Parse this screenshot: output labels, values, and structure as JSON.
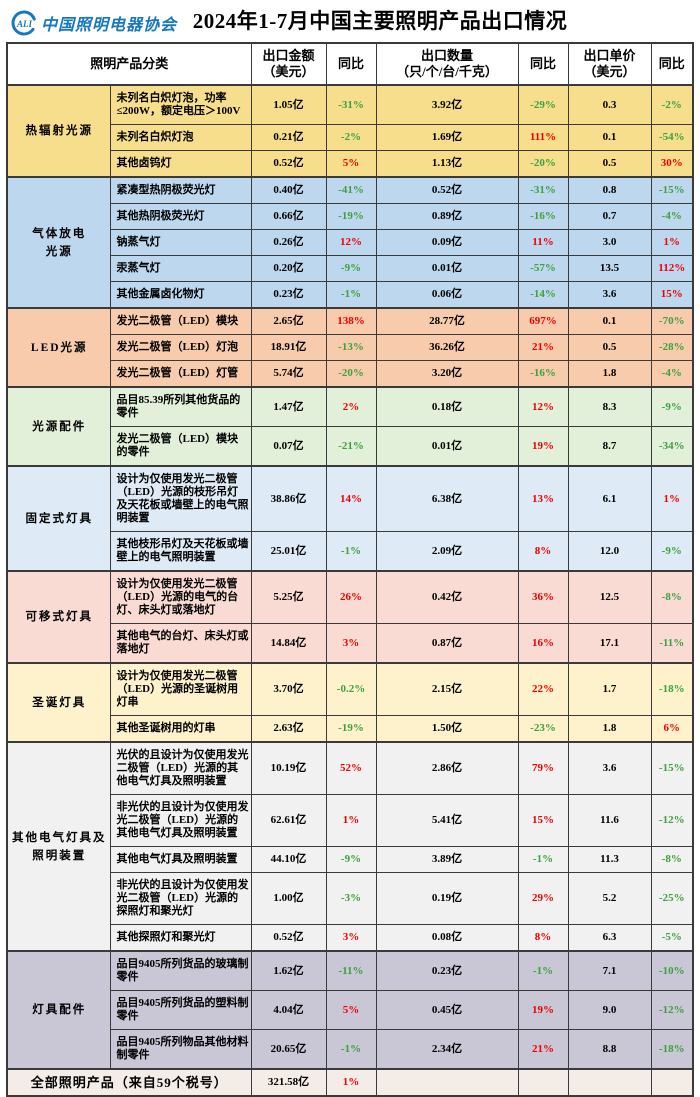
{
  "header_bar": {
    "org_abbr": "ALI",
    "org_name": "中国照明电器协会"
  },
  "colors": {
    "logo_blue": "#1878BE",
    "positive_red": "#EE0000",
    "negative_green": "#3FA03F",
    "border": "#3a3a3a",
    "header_bg": "#ffffff"
  },
  "chart_data": {
    "type": "table",
    "title": "2024年1-7月中国主要照明产品出口情况",
    "columns": {
      "category": "照明产品分类",
      "amount": "出口金额\n（美元）",
      "amount_yoy": "同比",
      "qty": "出口数量\n（只/个/台/千克）",
      "qty_yoy": "同比",
      "price": "出口单价\n（美元）",
      "price_yoy": "同比"
    },
    "sections": [
      {
        "name": "热辐射光源",
        "bg": "#F6DE8C",
        "rows": [
          {
            "product": "未列名白炽灯泡，功率≤200W，额定电压＞100V",
            "amount": "1.05亿",
            "amount_yoy": "-31%",
            "qty": "3.92亿",
            "qty_yoy": "-29%",
            "price": "0.3",
            "price_yoy": "-2%"
          },
          {
            "product": "未列名白炽灯泡",
            "amount": "0.21亿",
            "amount_yoy": "-2%",
            "qty": "1.69亿",
            "qty_yoy": "111%",
            "price": "0.1",
            "price_yoy": "-54%"
          },
          {
            "product": "其他卤钨灯",
            "amount": "0.52亿",
            "amount_yoy": "5%",
            "qty": "1.13亿",
            "qty_yoy": "-20%",
            "price": "0.5",
            "price_yoy": "30%"
          }
        ]
      },
      {
        "name": "气体放电\n光源",
        "bg": "#BDD7EE",
        "rows": [
          {
            "product": "紧凑型热阴极荧光灯",
            "amount": "0.40亿",
            "amount_yoy": "-41%",
            "qty": "0.52亿",
            "qty_yoy": "-31%",
            "price": "0.8",
            "price_yoy": "-15%"
          },
          {
            "product": "其他热阴极荧光灯",
            "amount": "0.66亿",
            "amount_yoy": "-19%",
            "qty": "0.89亿",
            "qty_yoy": "-16%",
            "price": "0.7",
            "price_yoy": "-4%"
          },
          {
            "product": "钠蒸气灯",
            "amount": "0.26亿",
            "amount_yoy": "12%",
            "qty": "0.09亿",
            "qty_yoy": "11%",
            "price": "3.0",
            "price_yoy": "1%"
          },
          {
            "product": "汞蒸气灯",
            "amount": "0.20亿",
            "amount_yoy": "-9%",
            "qty": "0.01亿",
            "qty_yoy": "-57%",
            "price": "13.5",
            "price_yoy": "112%"
          },
          {
            "product": "其他金属卤化物灯",
            "amount": "0.23亿",
            "amount_yoy": "-1%",
            "qty": "0.06亿",
            "qty_yoy": "-14%",
            "price": "3.6",
            "price_yoy": "15%"
          }
        ]
      },
      {
        "name": "LED光源",
        "bg": "#F8CBAD",
        "rows": [
          {
            "product": "发光二极管（LED）模块",
            "amount": "2.65亿",
            "amount_yoy": "138%",
            "qty": "28.77亿",
            "qty_yoy": "697%",
            "price": "0.1",
            "price_yoy": "-70%"
          },
          {
            "product": "发光二极管（LED）灯泡",
            "amount": "18.91亿",
            "amount_yoy": "-13%",
            "qty": "36.26亿",
            "qty_yoy": "21%",
            "price": "0.5",
            "price_yoy": "-28%"
          },
          {
            "product": "发光二极管（LED）灯管",
            "amount": "5.74亿",
            "amount_yoy": "-20%",
            "qty": "3.20亿",
            "qty_yoy": "-16%",
            "price": "1.8",
            "price_yoy": "-4%"
          }
        ]
      },
      {
        "name": "光源配件",
        "bg": "#E2EFD9",
        "rows": [
          {
            "product": "品目85.39所列其他货品的零件",
            "amount": "1.47亿",
            "amount_yoy": "2%",
            "qty": "0.18亿",
            "qty_yoy": "12%",
            "price": "8.3",
            "price_yoy": "-9%"
          },
          {
            "product": "发光二极管（LED）模块的零件",
            "amount": "0.07亿",
            "amount_yoy": "-21%",
            "qty": "0.01亿",
            "qty_yoy": "19%",
            "price": "8.7",
            "price_yoy": "-34%"
          }
        ]
      },
      {
        "name": "固定式灯具",
        "bg": "#DEEAF6",
        "rows": [
          {
            "product": "设计为仅使用发光二极管（LED）光源的枝形吊灯及天花板或墙壁上的电气照明装置",
            "amount": "38.86亿",
            "amount_yoy": "14%",
            "qty": "6.38亿",
            "qty_yoy": "13%",
            "price": "6.1",
            "price_yoy": "1%"
          },
          {
            "product": "其他枝形吊灯及天花板或墙壁上的电气照明装置",
            "amount": "25.01亿",
            "amount_yoy": "-1%",
            "qty": "2.09亿",
            "qty_yoy": "8%",
            "price": "12.0",
            "price_yoy": "-9%"
          }
        ]
      },
      {
        "name": "可移式灯具",
        "bg": "#F9DBD3",
        "rows": [
          {
            "product": "设计为仅使用发光二极管（LED）光源的电气的台灯、床头灯或落地灯",
            "amount": "5.25亿",
            "amount_yoy": "26%",
            "qty": "0.42亿",
            "qty_yoy": "36%",
            "price": "12.5",
            "price_yoy": "-8%"
          },
          {
            "product": "其他电气的台灯、床头灯或落地灯",
            "amount": "14.84亿",
            "amount_yoy": "3%",
            "qty": "0.87亿",
            "qty_yoy": "16%",
            "price": "17.1",
            "price_yoy": "-11%"
          }
        ]
      },
      {
        "name": "圣诞灯具",
        "bg": "#FEF2CC",
        "rows": [
          {
            "product": "设计为仅使用发光二极管（LED）光源的圣诞树用灯串",
            "amount": "3.70亿",
            "amount_yoy": "-0.2%",
            "qty": "2.15亿",
            "qty_yoy": "22%",
            "price": "1.7",
            "price_yoy": "-18%"
          },
          {
            "product": "其他圣诞树用的灯串",
            "amount": "2.63亿",
            "amount_yoy": "-19%",
            "qty": "1.50亿",
            "qty_yoy": "-23%",
            "price": "1.8",
            "price_yoy": "6%"
          }
        ]
      },
      {
        "name": "其他电气灯具及\n照明装置",
        "bg": "#F1F1F1",
        "rows": [
          {
            "product": "光伏的且设计为仅使用发光二极管（LED）光源的其他电气灯具及照明装置",
            "amount": "10.19亿",
            "amount_yoy": "52%",
            "qty": "2.86亿",
            "qty_yoy": "79%",
            "price": "3.6",
            "price_yoy": "-15%"
          },
          {
            "product": "非光伏的且设计为仅使用发光二极管（LED）光源的其他电气灯具及照明装置",
            "amount": "62.61亿",
            "amount_yoy": "1%",
            "qty": "5.41亿",
            "qty_yoy": "15%",
            "price": "11.6",
            "price_yoy": "-12%"
          },
          {
            "product": "其他电气灯具及照明装置",
            "amount": "44.10亿",
            "amount_yoy": "-9%",
            "qty": "3.89亿",
            "qty_yoy": "-1%",
            "price": "11.3",
            "price_yoy": "-8%"
          },
          {
            "product": "非光伏的且设计为仅使用发光二极管（LED）光源的探照灯和聚光灯",
            "amount": "1.00亿",
            "amount_yoy": "-3%",
            "qty": "0.19亿",
            "qty_yoy": "29%",
            "price": "5.2",
            "price_yoy": "-25%"
          },
          {
            "product": "其他探照灯和聚光灯",
            "amount": "0.52亿",
            "amount_yoy": "3%",
            "qty": "0.08亿",
            "qty_yoy": "8%",
            "price": "6.3",
            "price_yoy": "-5%"
          }
        ]
      },
      {
        "name": "灯具配件",
        "bg": "#C9C6D6",
        "rows": [
          {
            "product": "品目9405所列货品的玻璃制零件",
            "amount": "1.62亿",
            "amount_yoy": "-11%",
            "qty": "0.23亿",
            "qty_yoy": "-1%",
            "price": "7.1",
            "price_yoy": "-10%"
          },
          {
            "product": "品目9405所列货品的塑料制零件",
            "amount": "4.04亿",
            "amount_yoy": "5%",
            "qty": "0.45亿",
            "qty_yoy": "19%",
            "price": "9.0",
            "price_yoy": "-12%"
          },
          {
            "product": "品目9405所列物品其他材料制零件",
            "amount": "20.65亿",
            "amount_yoy": "-1%",
            "qty": "2.34亿",
            "qty_yoy": "21%",
            "price": "8.8",
            "price_yoy": "-18%"
          }
        ]
      }
    ],
    "total": {
      "label": "全部照明产品（来自59个税号）",
      "amount": "321.58亿",
      "amount_yoy": "1%",
      "bg": "#F4ECE7"
    }
  }
}
